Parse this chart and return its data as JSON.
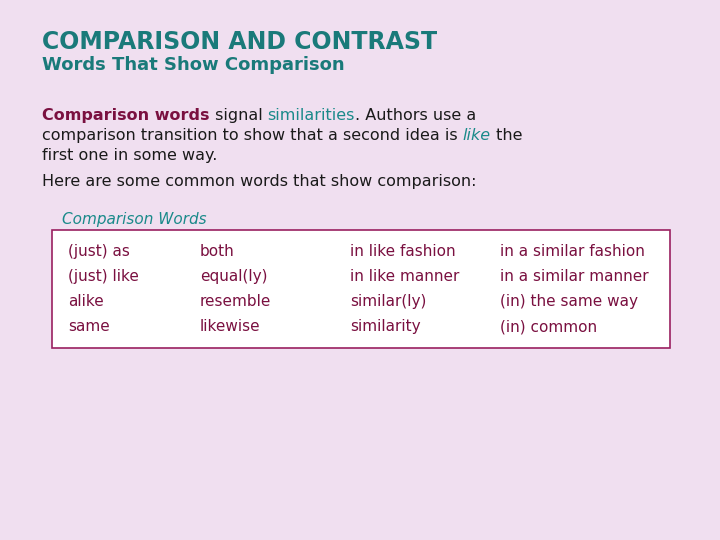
{
  "background_color": "#f0dff0",
  "title_line1": "COMPARISON AND CONTRAST",
  "title_line2": "Words That Show Comparison",
  "title_color": "#1a7a7a",
  "body_text_color": "#1a1a1a",
  "bold_color": "#7a1040",
  "teal_color": "#1a8a8a",
  "table_border_color": "#9a2060",
  "table_label_color": "#1a8a8a",
  "table_bg_color": "#ffffff",
  "table_label": "Comparison Words",
  "table_data_color": "#7a1040",
  "col1": [
    "(just) as",
    "(just) like",
    "alike",
    "same"
  ],
  "col2": [
    "both",
    "equal(ly)",
    "resemble",
    "likewise"
  ],
  "col3": [
    "in like fashion",
    "in like manner",
    "similar(ly)",
    "similarity"
  ],
  "col4": [
    "in a similar fashion",
    "in a similar manner",
    "(in) the same way",
    "(in) common"
  ]
}
